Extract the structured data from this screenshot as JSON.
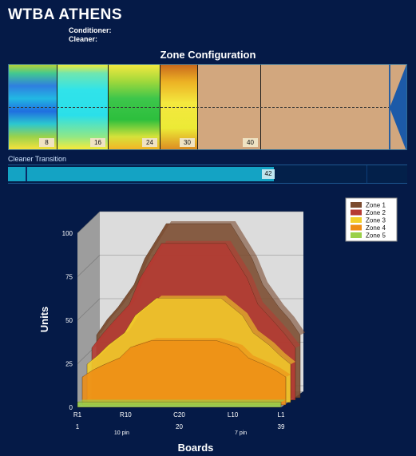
{
  "header": {
    "title": "WTBA ATHENS",
    "conditioner_label": "Conditioner:",
    "cleaner_label": "Cleaner:"
  },
  "zone_config": {
    "title": "Zone Configuration",
    "board_markers": [
      "8",
      "16",
      "24",
      "30",
      "40"
    ]
  },
  "cleaner_transition": {
    "label": "Cleaner Transition",
    "value": "42"
  },
  "colors": {
    "background": "#051a47",
    "lane_wood": "#d2a77e",
    "zone1": "#7a4a2e",
    "zone2": "#b63a32",
    "zone3": "#f2cf2a",
    "zone4": "#ee8d15",
    "zone5": "#9ad04a"
  },
  "chart_data": {
    "type": "area",
    "xlabel": "Boards",
    "ylabel": "Units",
    "ylim": [
      0,
      100
    ],
    "yticks": [
      "0",
      "25",
      "50",
      "75",
      "100"
    ],
    "x_tick_labels": [
      "R1",
      "R10",
      "C20",
      "L10",
      "L1"
    ],
    "x_sub_labels": [
      "1",
      "20",
      "39"
    ],
    "pin_labels": [
      "10 pin",
      "7 pin"
    ],
    "legend": [
      "Zone 1",
      "Zone 2",
      "Zone 3",
      "Zone 4",
      "Zone 5"
    ],
    "x": [
      1,
      3,
      5,
      8,
      10,
      14,
      18,
      20,
      22,
      26,
      30,
      32,
      35,
      37,
      39
    ],
    "series": [
      {
        "name": "Zone 1",
        "values": [
          36,
          45,
          52,
          65,
          80,
          100,
          100,
          100,
          100,
          100,
          80,
          65,
          52,
          45,
          36
        ]
      },
      {
        "name": "Zone 2",
        "values": [
          30,
          38,
          45,
          55,
          70,
          90,
          90,
          90,
          90,
          90,
          70,
          55,
          45,
          38,
          30
        ]
      },
      {
        "name": "Zone 3",
        "values": [
          22,
          27,
          33,
          40,
          50,
          60,
          60,
          60,
          60,
          60,
          50,
          40,
          33,
          27,
          22
        ]
      },
      {
        "name": "Zone 4",
        "values": [
          16,
          20,
          23,
          27,
          33,
          37,
          37,
          37,
          37,
          37,
          33,
          27,
          23,
          20,
          16
        ]
      },
      {
        "name": "Zone 5",
        "values": [
          3,
          3,
          3,
          3,
          3,
          3,
          3,
          3,
          3,
          3,
          3,
          3,
          3,
          3,
          3
        ]
      }
    ]
  }
}
